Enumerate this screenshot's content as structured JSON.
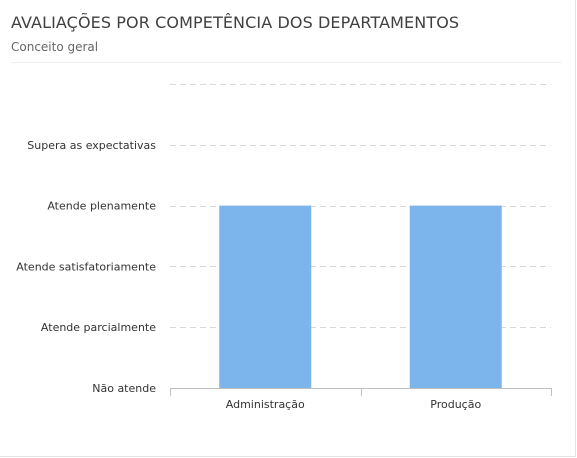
{
  "header": {
    "title": "AVALIAÇÕES POR COMPETÊNCIA DOS DEPARTAMENTOS",
    "subtitle": "Conceito geral"
  },
  "chart_data": {
    "type": "bar",
    "title": "AVALIAÇÕES POR COMPETÊNCIA DOS DEPARTAMENTOS",
    "subtitle": "Conceito geral",
    "categories": [
      "Administração",
      "Produção"
    ],
    "values": [
      3,
      3
    ],
    "y_tick_labels": [
      "Não atende",
      "Atende parcialmente",
      "Atende satisfatoriamente",
      "Atende plenamente",
      "Supera as expectativas",
      ""
    ],
    "ylim": [
      0,
      5
    ],
    "grid": true,
    "bar_color": "#7cb5ec",
    "grid_color": "#d8d8d8",
    "axis_color": "#c0c0c0"
  }
}
